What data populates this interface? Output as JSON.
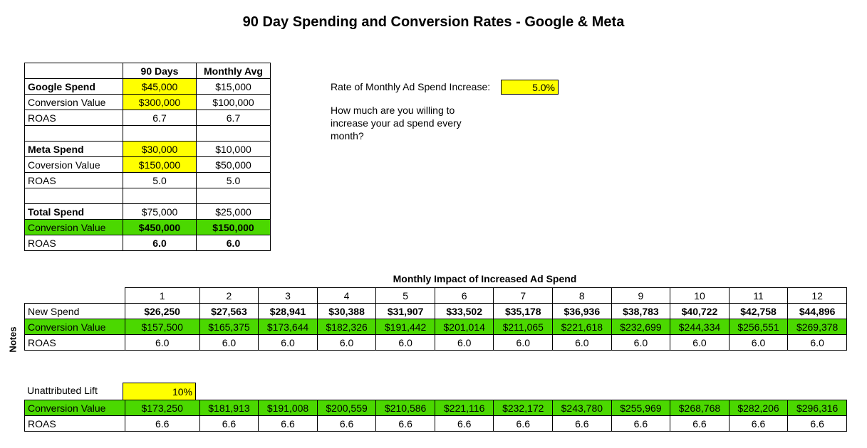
{
  "title": "90 Day Spending and Conversion Rates - Google & Meta",
  "summary": {
    "headers": [
      "90 Days",
      "Monthly Avg"
    ],
    "rows": [
      {
        "label": "Google Spend",
        "d90": "$45,000",
        "monthly": "$15,000",
        "bold_label": true,
        "highlight": true
      },
      {
        "label": "Conversion Value",
        "d90": "$300,000",
        "monthly": "$100,000",
        "highlight": true
      },
      {
        "label": "ROAS",
        "d90": "6.7",
        "monthly": "6.7"
      },
      {
        "label": "",
        "d90": "",
        "monthly": ""
      },
      {
        "label": "Meta Spend",
        "d90": "$30,000",
        "monthly": "$10,000",
        "bold_label": true,
        "highlight": true
      },
      {
        "label": "Coversion Value",
        "d90": "$150,000",
        "monthly": "$50,000",
        "highlight": true
      },
      {
        "label": "ROAS",
        "d90": "5.0",
        "monthly": "5.0"
      },
      {
        "label": "",
        "d90": "",
        "monthly": ""
      },
      {
        "label": "Total Spend",
        "d90": "$75,000",
        "monthly": "$25,000",
        "bold_label": true
      },
      {
        "label": "Conversion Value",
        "d90": "$450,000",
        "monthly": "$150,000",
        "green": true,
        "bold_values": true
      },
      {
        "label": "ROAS",
        "d90": "6.0",
        "monthly": "6.0",
        "bold_values": true
      }
    ]
  },
  "rate": {
    "label": "Rate of Monthly Ad Spend Increase:",
    "value": "5.0%",
    "question": "How much are you willing to increase your ad spend every month?"
  },
  "impact": {
    "title": "Monthly Impact of Increased Ad Spend",
    "months": [
      "1",
      "2",
      "3",
      "4",
      "5",
      "6",
      "7",
      "8",
      "9",
      "10",
      "11",
      "12"
    ],
    "new_spend_label": "New Spend",
    "new_spend": [
      "$26,250",
      "$27,563",
      "$28,941",
      "$30,388",
      "$31,907",
      "$33,502",
      "$35,178",
      "$36,936",
      "$38,783",
      "$40,722",
      "$42,758",
      "$44,896"
    ],
    "conv_label": "Conversion Value",
    "conv": [
      "$157,500",
      "$165,375",
      "$173,644",
      "$182,326",
      "$191,442",
      "$201,014",
      "$211,065",
      "$221,618",
      "$232,699",
      "$244,334",
      "$256,551",
      "$269,378"
    ],
    "roas_label": "ROAS",
    "roas": [
      "6.0",
      "6.0",
      "6.0",
      "6.0",
      "6.0",
      "6.0",
      "6.0",
      "6.0",
      "6.0",
      "6.0",
      "6.0",
      "6.0"
    ]
  },
  "notes_label": "Notes",
  "lift": {
    "label": "Unattributed Lift",
    "value": "10%",
    "conv_label": "Conversion Value",
    "conv": [
      "$173,250",
      "$181,913",
      "$191,008",
      "$200,559",
      "$210,586",
      "$221,116",
      "$232,172",
      "$243,780",
      "$255,969",
      "$268,768",
      "$282,206",
      "$296,316"
    ],
    "roas_label": "ROAS",
    "roas": [
      "6.6",
      "6.6",
      "6.6",
      "6.6",
      "6.6",
      "6.6",
      "6.6",
      "6.6",
      "6.6",
      "6.6",
      "6.6",
      "6.6"
    ]
  },
  "colors": {
    "yellow": "#ffff00",
    "green": "#4bd800"
  }
}
